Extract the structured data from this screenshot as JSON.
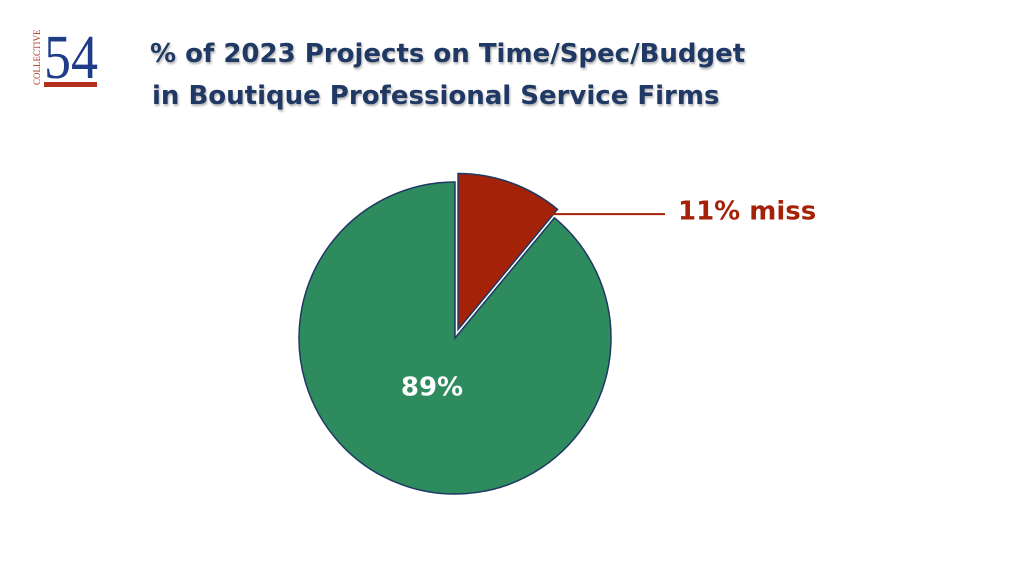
{
  "logo": {
    "number": "54",
    "word": "COLLECTIVE"
  },
  "chart_data": {
    "type": "pie",
    "title": [
      "% of 2023 Projects on Time/Spec/Budget",
      "in Boutique Professional Service Firms"
    ],
    "values": [
      89,
      11
    ],
    "value_labels": [
      "89%",
      "11% miss"
    ],
    "colors": [
      "#2e8b5e",
      "#a32208"
    ],
    "label_colors": [
      "#ffffff",
      "#a32208"
    ]
  }
}
